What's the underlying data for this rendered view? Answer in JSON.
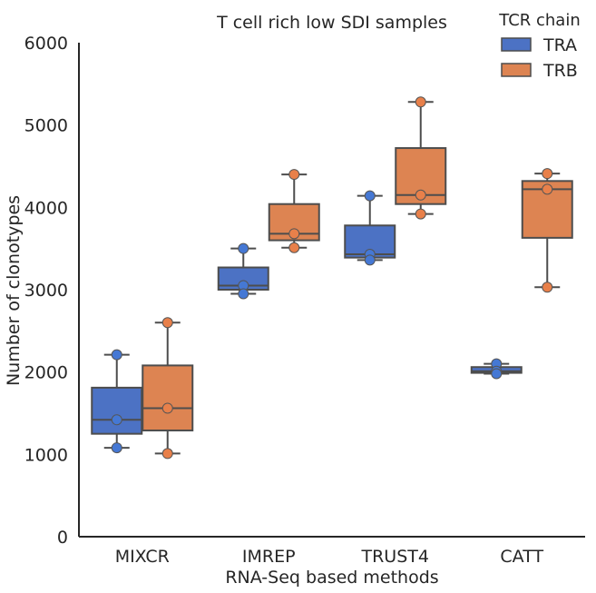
{
  "chart_data": {
    "type": "box",
    "title": "T cell rich low SDI samples",
    "xlabel": "RNA-Seq based methods",
    "ylabel": "Number of clonotypes",
    "ylim": [
      0,
      6000
    ],
    "yticks": [
      0,
      1000,
      2000,
      3000,
      4000,
      5000,
      6000
    ],
    "categories": [
      "MIXCR",
      "IMREP",
      "TRUST4",
      "CATT"
    ],
    "legend": {
      "title": "TCR chain",
      "placement": "top-right"
    },
    "colors": {
      "TRA": "#4c72c4",
      "TRB": "#dd8452",
      "TRA_point": "#4578d4",
      "TRB_point": "#e8804a",
      "box_edge": "#4d4d4d",
      "axis": "#262626"
    },
    "series": [
      {
        "name": "TRA",
        "boxes": [
          {
            "category": "MIXCR",
            "whisker_low": 1080,
            "q1": 1250,
            "median": 1420,
            "q3": 1810,
            "whisker_high": 2210,
            "points": [
              2210,
              1420,
              1080
            ]
          },
          {
            "category": "IMREP",
            "whisker_low": 2950,
            "q1": 3000,
            "median": 3050,
            "q3": 3270,
            "whisker_high": 3500,
            "points": [
              3500,
              3050,
              2950
            ]
          },
          {
            "category": "TRUST4",
            "whisker_low": 3360,
            "q1": 3390,
            "median": 3430,
            "q3": 3780,
            "whisker_high": 4140,
            "points": [
              4140,
              3430,
              3360
            ]
          },
          {
            "category": "CATT",
            "whisker_low": 1980,
            "q1": 1990,
            "median": 2010,
            "q3": 2060,
            "whisker_high": 2100,
            "points": [
              2100,
              2010,
              1980
            ]
          }
        ]
      },
      {
        "name": "TRB",
        "boxes": [
          {
            "category": "MIXCR",
            "whisker_low": 1010,
            "q1": 1290,
            "median": 1560,
            "q3": 2080,
            "whisker_high": 2600,
            "points": [
              2600,
              1560,
              1010
            ]
          },
          {
            "category": "IMREP",
            "whisker_low": 3510,
            "q1": 3600,
            "median": 3680,
            "q3": 4040,
            "whisker_high": 4400,
            "points": [
              4400,
              3680,
              3510
            ]
          },
          {
            "category": "TRUST4",
            "whisker_low": 3920,
            "q1": 4040,
            "median": 4150,
            "q3": 4720,
            "whisker_high": 5280,
            "points": [
              5280,
              4150,
              3920
            ]
          },
          {
            "category": "CATT",
            "whisker_low": 3030,
            "q1": 3630,
            "median": 4220,
            "q3": 4320,
            "whisker_high": 4410,
            "points": [
              4410,
              4220,
              3030
            ]
          }
        ]
      }
    ]
  }
}
